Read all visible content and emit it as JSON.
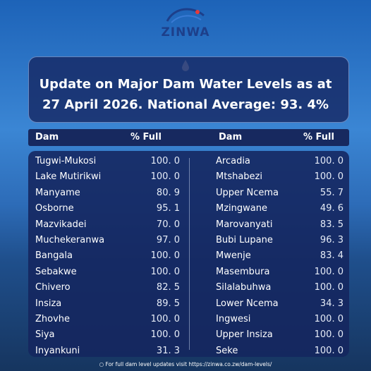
{
  "header": {
    "logo": "ZINWA",
    "title_lines": [
      "Update on Major Dam Water Levels as at",
      "27 April 2026. National Average: 93. 4%"
    ]
  },
  "table": {
    "columns": [
      "Dam",
      "% Full",
      "Dam",
      "% Full"
    ],
    "left_rows": [
      [
        "Tugwi-Mukosi",
        "100. 0"
      ],
      [
        "Lake Mutirikwi",
        "100. 0"
      ],
      [
        "Manyame",
        "80. 9"
      ],
      [
        "Osborne",
        "95. 1"
      ],
      [
        "Mazvikadei",
        "70. 0"
      ],
      [
        "Muchekeranwa",
        "97. 0"
      ],
      [
        "Bangala",
        "100. 0"
      ],
      [
        "Sebakwe",
        "100. 0"
      ],
      [
        "Chivero",
        "82. 5"
      ],
      [
        "Insiza",
        "89. 5"
      ],
      [
        "Zhovhe",
        "100. 0"
      ],
      [
        "Siya",
        "100. 0"
      ],
      [
        "Inyankuni",
        "31. 3"
      ]
    ],
    "right_rows": [
      [
        "Arcadia",
        "100. 0"
      ],
      [
        "Mtshabezi",
        "100. 0"
      ],
      [
        "Upper Ncema",
        "55. 7"
      ],
      [
        "Mzingwane",
        "49. 6"
      ],
      [
        "Marovanyati",
        "83. 5"
      ],
      [
        "Bubi Lupane",
        "96. 3"
      ],
      [
        "Mwenje",
        "83. 4"
      ],
      [
        "Masembura",
        "100. 0"
      ],
      [
        "Silalabuhwa",
        "100. 0"
      ],
      [
        "Lower Ncema",
        "34. 3"
      ],
      [
        "Ingwesi",
        "100. 0"
      ],
      [
        "Upper Insiza",
        "100. 0"
      ],
      [
        "Seke",
        "100. 0"
      ]
    ]
  },
  "footer": {
    "text": "For full dam level updates visit https://zinwa.co.zw/dam-levels/"
  }
}
